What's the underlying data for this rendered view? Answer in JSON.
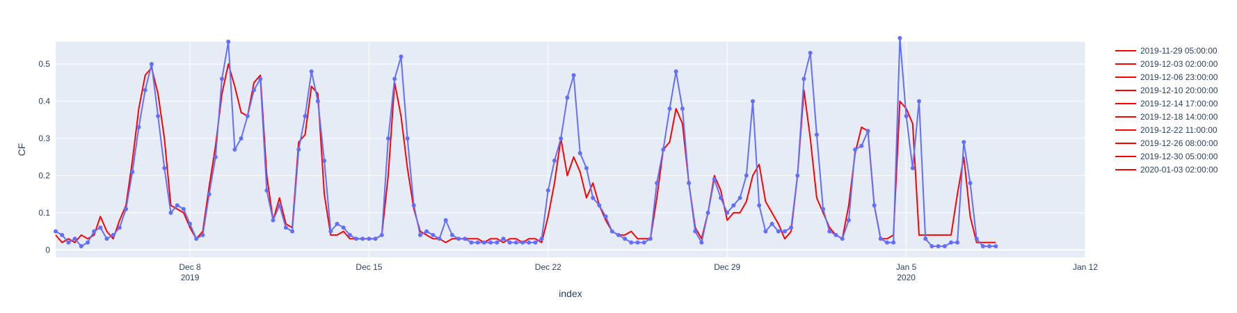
{
  "chart_data": {
    "type": "line",
    "xlabel": "index",
    "ylabel": "CF",
    "x_range": [
      "2019-12-02T18:00:00",
      "2020-01-12T00:00:00"
    ],
    "ylim": [
      -0.02,
      0.56
    ],
    "grid": true,
    "legend_position": "right",
    "plot_background": "#e5ecf6",
    "x_ticks": [
      {
        "date": "2019-12-08",
        "label": "Dec 8",
        "sublabel": "2019"
      },
      {
        "date": "2019-12-15",
        "label": "Dec 15",
        "sublabel": ""
      },
      {
        "date": "2019-12-22",
        "label": "Dec 22",
        "sublabel": ""
      },
      {
        "date": "2019-12-29",
        "label": "Dec 29",
        "sublabel": ""
      },
      {
        "date": "2020-01-05",
        "label": "Jan 5",
        "sublabel": "2020"
      },
      {
        "date": "2020-01-12",
        "label": "Jan 12",
        "sublabel": ""
      }
    ],
    "y_ticks": [
      {
        "value": 0,
        "label": "0"
      },
      {
        "value": 0.1,
        "label": "0.1"
      },
      {
        "value": 0.2,
        "label": "0.2"
      },
      {
        "value": 0.3,
        "label": "0.3"
      },
      {
        "value": 0.4,
        "label": "0.4"
      },
      {
        "value": 0.5,
        "label": "0.5"
      }
    ],
    "legend": [
      {
        "name": "2019-11-29 05:00:00",
        "color": "#ff0000"
      },
      {
        "name": "2019-12-03 02:00:00",
        "color": "#ff0000"
      },
      {
        "name": "2019-12-06 23:00:00",
        "color": "#ff0000"
      },
      {
        "name": "2019-12-10 20:00:00",
        "color": "#ff0000"
      },
      {
        "name": "2019-12-14 17:00:00",
        "color": "#ff0000"
      },
      {
        "name": "2019-12-18 14:00:00",
        "color": "#ff0000"
      },
      {
        "name": "2019-12-22 11:00:00",
        "color": "#ff0000"
      },
      {
        "name": "2019-12-26 08:00:00",
        "color": "#ff0000"
      },
      {
        "name": "2019-12-30 05:00:00",
        "color": "#ff0000"
      },
      {
        "name": "2020-01-03 02:00:00",
        "color": "#ff0000"
      }
    ],
    "series": [
      {
        "style": "lines",
        "color": "#ff0000",
        "x": [
          "2019-12-02T18:00",
          "2019-12-03T00:00",
          "2019-12-03T06:00",
          "2019-12-03T12:00",
          "2019-12-03T18:00",
          "2019-12-04T00:00",
          "2019-12-04T06:00",
          "2019-12-04T12:00",
          "2019-12-04T18:00",
          "2019-12-05T00:00",
          "2019-12-05T06:00",
          "2019-12-05T12:00",
          "2019-12-05T18:00",
          "2019-12-06T00:00",
          "2019-12-06T06:00",
          "2019-12-06T12:00",
          "2019-12-06T18:00",
          "2019-12-07T00:00",
          "2019-12-07T06:00",
          "2019-12-07T12:00",
          "2019-12-07T18:00",
          "2019-12-08T00:00",
          "2019-12-08T06:00",
          "2019-12-08T12:00",
          "2019-12-08T18:00",
          "2019-12-09T00:00",
          "2019-12-09T06:00",
          "2019-12-09T12:00",
          "2019-12-09T18:00",
          "2019-12-10T00:00",
          "2019-12-10T06:00",
          "2019-12-10T12:00",
          "2019-12-10T18:00",
          "2019-12-11T00:00",
          "2019-12-11T06:00",
          "2019-12-11T12:00",
          "2019-12-11T18:00",
          "2019-12-12T00:00",
          "2019-12-12T06:00",
          "2019-12-12T12:00",
          "2019-12-12T18:00",
          "2019-12-13T00:00",
          "2019-12-13T06:00",
          "2019-12-13T12:00",
          "2019-12-13T18:00",
          "2019-12-14T00:00",
          "2019-12-14T06:00",
          "2019-12-14T12:00",
          "2019-12-14T18:00",
          "2019-12-15T00:00",
          "2019-12-15T06:00",
          "2019-12-15T12:00",
          "2019-12-15T18:00",
          "2019-12-16T00:00",
          "2019-12-16T06:00",
          "2019-12-16T12:00",
          "2019-12-16T18:00",
          "2019-12-17T00:00",
          "2019-12-17T06:00",
          "2019-12-17T12:00",
          "2019-12-17T18:00",
          "2019-12-18T00:00",
          "2019-12-18T06:00",
          "2019-12-18T12:00",
          "2019-12-18T18:00",
          "2019-12-19T00:00",
          "2019-12-19T06:00",
          "2019-12-19T12:00",
          "2019-12-19T18:00",
          "2019-12-20T00:00",
          "2019-12-20T06:00",
          "2019-12-20T12:00",
          "2019-12-20T18:00",
          "2019-12-21T00:00",
          "2019-12-21T06:00",
          "2019-12-21T12:00",
          "2019-12-21T18:00",
          "2019-12-22T00:00",
          "2019-12-22T06:00",
          "2019-12-22T12:00",
          "2019-12-22T18:00",
          "2019-12-23T00:00",
          "2019-12-23T06:00",
          "2019-12-23T12:00",
          "2019-12-23T18:00",
          "2019-12-24T00:00",
          "2019-12-24T06:00",
          "2019-12-24T12:00",
          "2019-12-24T18:00",
          "2019-12-25T00:00",
          "2019-12-25T06:00",
          "2019-12-25T12:00",
          "2019-12-25T18:00",
          "2019-12-26T00:00",
          "2019-12-26T06:00",
          "2019-12-26T12:00",
          "2019-12-26T18:00",
          "2019-12-27T00:00",
          "2019-12-27T06:00",
          "2019-12-27T12:00",
          "2019-12-27T18:00",
          "2019-12-28T00:00",
          "2019-12-28T06:00",
          "2019-12-28T12:00",
          "2019-12-28T18:00",
          "2019-12-29T00:00",
          "2019-12-29T06:00",
          "2019-12-29T12:00",
          "2019-12-29T18:00",
          "2019-12-30T00:00",
          "2019-12-30T06:00",
          "2019-12-30T12:00",
          "2019-12-30T18:00",
          "2019-12-31T00:00",
          "2019-12-31T06:00",
          "2019-12-31T12:00",
          "2019-12-31T18:00",
          "2020-01-01T00:00",
          "2020-01-01T06:00",
          "2020-01-01T12:00",
          "2020-01-01T18:00",
          "2020-01-02T00:00",
          "2020-01-02T06:00",
          "2020-01-02T12:00",
          "2020-01-02T18:00",
          "2020-01-03T00:00",
          "2020-01-03T06:00",
          "2020-01-03T12:00",
          "2020-01-03T18:00",
          "2020-01-04T00:00",
          "2020-01-04T06:00",
          "2020-01-04T12:00",
          "2020-01-04T18:00",
          "2020-01-05T00:00",
          "2020-01-05T06:00",
          "2020-01-05T12:00",
          "2020-01-05T18:00",
          "2020-01-06T00:00",
          "2020-01-06T06:00",
          "2020-01-06T12:00",
          "2020-01-06T18:00",
          "2020-01-07T00:00",
          "2020-01-07T06:00",
          "2020-01-07T12:00",
          "2020-01-07T18:00",
          "2020-01-08T00:00",
          "2020-01-08T06:00",
          "2020-01-08T12:00"
        ],
        "y": [
          0.04,
          0.02,
          0.03,
          0.02,
          0.04,
          0.03,
          0.04,
          0.09,
          0.05,
          0.03,
          0.08,
          0.12,
          0.24,
          0.38,
          0.47,
          0.49,
          0.42,
          0.3,
          0.12,
          0.11,
          0.1,
          0.06,
          0.03,
          0.05,
          0.17,
          0.28,
          0.42,
          0.5,
          0.44,
          0.37,
          0.36,
          0.45,
          0.47,
          0.2,
          0.08,
          0.14,
          0.07,
          0.06,
          0.29,
          0.31,
          0.44,
          0.42,
          0.15,
          0.04,
          0.04,
          0.05,
          0.03,
          0.03,
          0.03,
          0.03,
          0.03,
          0.04,
          0.2,
          0.45,
          0.36,
          0.22,
          0.11,
          0.05,
          0.04,
          0.03,
          0.03,
          0.02,
          0.03,
          0.03,
          0.03,
          0.03,
          0.03,
          0.02,
          0.03,
          0.03,
          0.02,
          0.03,
          0.03,
          0.02,
          0.03,
          0.03,
          0.02,
          0.09,
          0.18,
          0.3,
          0.2,
          0.25,
          0.21,
          0.14,
          0.18,
          0.12,
          0.08,
          0.05,
          0.04,
          0.04,
          0.05,
          0.03,
          0.03,
          0.03,
          0.14,
          0.27,
          0.29,
          0.38,
          0.34,
          0.18,
          0.06,
          0.03,
          0.1,
          0.2,
          0.16,
          0.08,
          0.1,
          0.1,
          0.13,
          0.2,
          0.23,
          0.13,
          0.1,
          0.07,
          0.03,
          0.05,
          0.2,
          0.43,
          0.3,
          0.14,
          0.1,
          0.06,
          0.04,
          0.03,
          0.12,
          0.26,
          0.33,
          0.32,
          0.12,
          0.03,
          0.03,
          0.04,
          0.4,
          0.38,
          0.34,
          0.04,
          0.04,
          0.04,
          0.04,
          0.04,
          0.04,
          0.15,
          0.25,
          0.09,
          0.02,
          0.02,
          0.02,
          0.02
        ]
      },
      {
        "style": "lines+markers",
        "color": "#636efa",
        "x": [
          "2019-12-02T18:00",
          "2019-12-03T00:00",
          "2019-12-03T06:00",
          "2019-12-03T12:00",
          "2019-12-03T18:00",
          "2019-12-04T00:00",
          "2019-12-04T06:00",
          "2019-12-04T12:00",
          "2019-12-04T18:00",
          "2019-12-05T00:00",
          "2019-12-05T06:00",
          "2019-12-05T12:00",
          "2019-12-05T18:00",
          "2019-12-06T00:00",
          "2019-12-06T06:00",
          "2019-12-06T12:00",
          "2019-12-06T18:00",
          "2019-12-07T00:00",
          "2019-12-07T06:00",
          "2019-12-07T12:00",
          "2019-12-07T18:00",
          "2019-12-08T00:00",
          "2019-12-08T06:00",
          "2019-12-08T12:00",
          "2019-12-08T18:00",
          "2019-12-09T00:00",
          "2019-12-09T06:00",
          "2019-12-09T12:00",
          "2019-12-09T18:00",
          "2019-12-10T00:00",
          "2019-12-10T06:00",
          "2019-12-10T12:00",
          "2019-12-10T18:00",
          "2019-12-11T00:00",
          "2019-12-11T06:00",
          "2019-12-11T12:00",
          "2019-12-11T18:00",
          "2019-12-12T00:00",
          "2019-12-12T06:00",
          "2019-12-12T12:00",
          "2019-12-12T18:00",
          "2019-12-13T00:00",
          "2019-12-13T06:00",
          "2019-12-13T12:00",
          "2019-12-13T18:00",
          "2019-12-14T00:00",
          "2019-12-14T06:00",
          "2019-12-14T12:00",
          "2019-12-14T18:00",
          "2019-12-15T00:00",
          "2019-12-15T06:00",
          "2019-12-15T12:00",
          "2019-12-15T18:00",
          "2019-12-16T00:00",
          "2019-12-16T06:00",
          "2019-12-16T12:00",
          "2019-12-16T18:00",
          "2019-12-17T00:00",
          "2019-12-17T06:00",
          "2019-12-17T12:00",
          "2019-12-17T18:00",
          "2019-12-18T00:00",
          "2019-12-18T06:00",
          "2019-12-18T12:00",
          "2019-12-18T18:00",
          "2019-12-19T00:00",
          "2019-12-19T06:00",
          "2019-12-19T12:00",
          "2019-12-19T18:00",
          "2019-12-20T00:00",
          "2019-12-20T06:00",
          "2019-12-20T12:00",
          "2019-12-20T18:00",
          "2019-12-21T00:00",
          "2019-12-21T06:00",
          "2019-12-21T12:00",
          "2019-12-21T18:00",
          "2019-12-22T00:00",
          "2019-12-22T06:00",
          "2019-12-22T12:00",
          "2019-12-22T18:00",
          "2019-12-23T00:00",
          "2019-12-23T06:00",
          "2019-12-23T12:00",
          "2019-12-23T18:00",
          "2019-12-24T00:00",
          "2019-12-24T06:00",
          "2019-12-24T12:00",
          "2019-12-24T18:00",
          "2019-12-25T00:00",
          "2019-12-25T06:00",
          "2019-12-25T12:00",
          "2019-12-25T18:00",
          "2019-12-26T00:00",
          "2019-12-26T06:00",
          "2019-12-26T12:00",
          "2019-12-26T18:00",
          "2019-12-27T00:00",
          "2019-12-27T06:00",
          "2019-12-27T12:00",
          "2019-12-27T18:00",
          "2019-12-28T00:00",
          "2019-12-28T06:00",
          "2019-12-28T12:00",
          "2019-12-28T18:00",
          "2019-12-29T00:00",
          "2019-12-29T06:00",
          "2019-12-29T12:00",
          "2019-12-29T18:00",
          "2019-12-30T00:00",
          "2019-12-30T06:00",
          "2019-12-30T12:00",
          "2019-12-30T18:00",
          "2019-12-31T00:00",
          "2019-12-31T06:00",
          "2019-12-31T12:00",
          "2019-12-31T18:00",
          "2020-01-01T00:00",
          "2020-01-01T06:00",
          "2020-01-01T12:00",
          "2020-01-01T18:00",
          "2020-01-02T00:00",
          "2020-01-02T06:00",
          "2020-01-02T12:00",
          "2020-01-02T18:00",
          "2020-01-03T00:00",
          "2020-01-03T06:00",
          "2020-01-03T12:00",
          "2020-01-03T18:00",
          "2020-01-04T00:00",
          "2020-01-04T06:00",
          "2020-01-04T12:00",
          "2020-01-04T18:00",
          "2020-01-05T00:00",
          "2020-01-05T06:00",
          "2020-01-05T12:00",
          "2020-01-05T18:00",
          "2020-01-06T00:00",
          "2020-01-06T06:00",
          "2020-01-06T12:00",
          "2020-01-06T18:00",
          "2020-01-07T00:00",
          "2020-01-07T06:00",
          "2020-01-07T12:00",
          "2020-01-07T18:00",
          "2020-01-08T00:00",
          "2020-01-08T06:00",
          "2020-01-08T12:00"
        ],
        "y": [
          0.05,
          0.04,
          0.02,
          0.03,
          0.01,
          0.02,
          0.05,
          0.06,
          0.03,
          0.04,
          0.06,
          0.11,
          0.21,
          0.33,
          0.43,
          0.5,
          0.36,
          0.22,
          0.1,
          0.12,
          0.11,
          0.07,
          0.03,
          0.04,
          0.15,
          0.25,
          0.46,
          0.56,
          0.27,
          0.3,
          0.36,
          0.43,
          0.46,
          0.16,
          0.08,
          0.12,
          0.06,
          0.05,
          0.27,
          0.36,
          0.48,
          0.4,
          0.24,
          0.05,
          0.07,
          0.06,
          0.04,
          0.03,
          0.03,
          0.03,
          0.03,
          0.04,
          0.3,
          0.46,
          0.52,
          0.3,
          0.12,
          0.04,
          0.05,
          0.04,
          0.03,
          0.08,
          0.04,
          0.03,
          0.03,
          0.02,
          0.02,
          0.02,
          0.02,
          0.02,
          0.03,
          0.02,
          0.02,
          0.02,
          0.02,
          0.02,
          0.03,
          0.16,
          0.24,
          0.3,
          0.41,
          0.47,
          0.26,
          0.22,
          0.14,
          0.12,
          0.09,
          0.05,
          0.04,
          0.03,
          0.02,
          0.02,
          0.02,
          0.03,
          0.18,
          0.27,
          0.38,
          0.48,
          0.38,
          0.18,
          0.05,
          0.02,
          0.1,
          0.19,
          0.14,
          0.1,
          0.12,
          0.14,
          0.2,
          0.4,
          0.12,
          0.05,
          0.07,
          0.05,
          0.05,
          0.06,
          0.2,
          0.46,
          0.53,
          0.31,
          0.11,
          0.05,
          0.04,
          0.03,
          0.08,
          0.27,
          0.28,
          0.32,
          0.12,
          0.03,
          0.02,
          0.02,
          0.57,
          0.36,
          0.22,
          0.4,
          0.03,
          0.01,
          0.01,
          0.01,
          0.02,
          0.02,
          0.29,
          0.18,
          0.03,
          0.01,
          0.01,
          0.01
        ]
      }
    ]
  }
}
